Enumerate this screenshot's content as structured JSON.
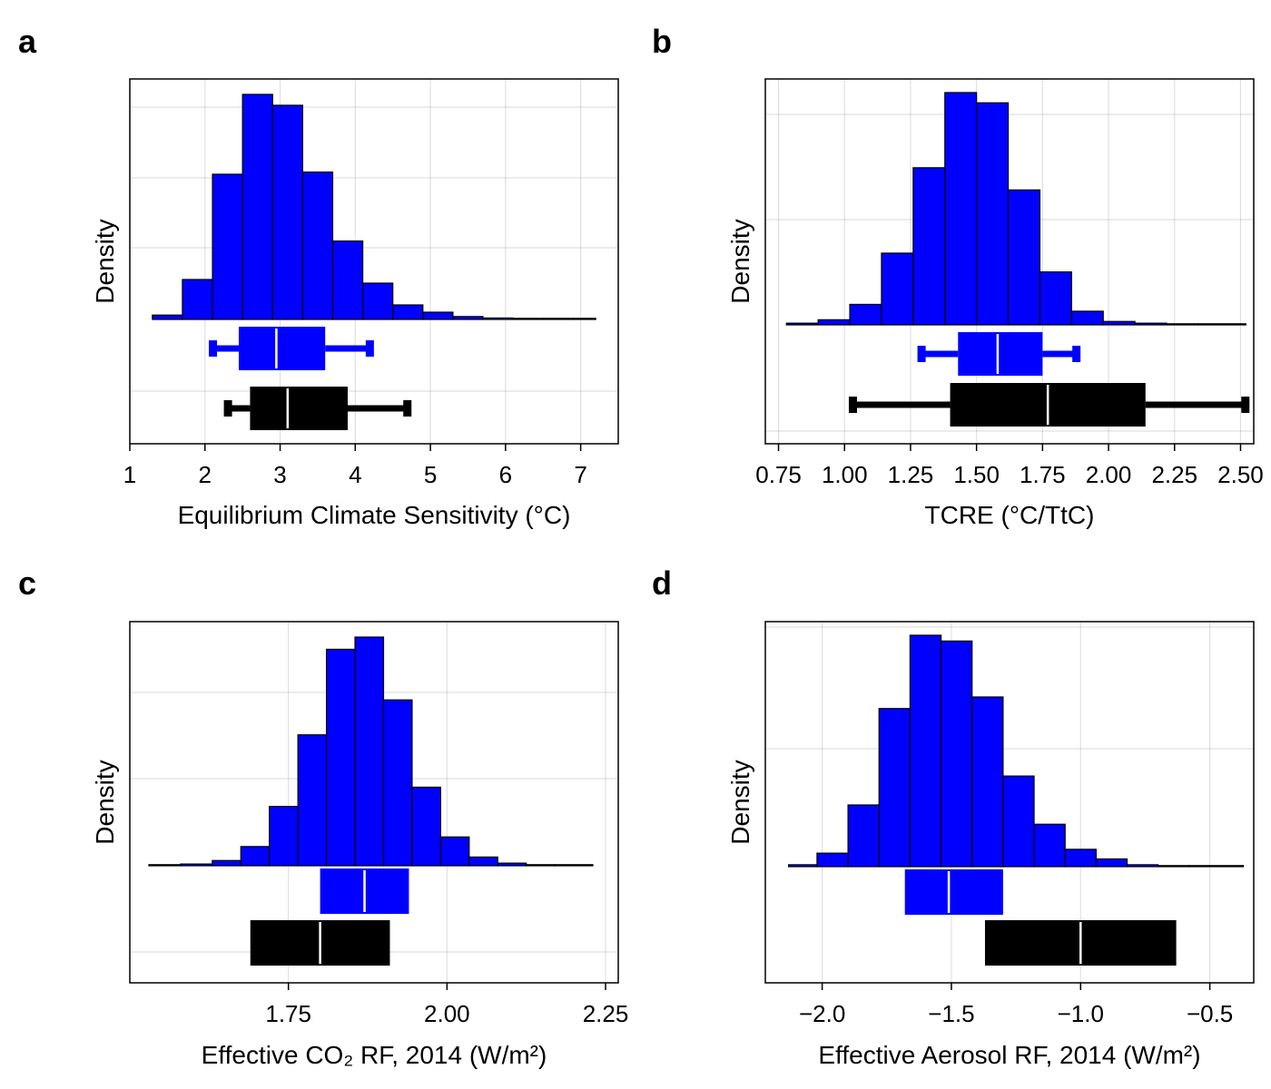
{
  "chart_data": [
    {
      "panel": "a",
      "type": "histogram",
      "xlabel": "Equilibrium Climate Sensitivity (°C)",
      "ylabel": "Density",
      "xlim": [
        1.0,
        7.5
      ],
      "xticks": [
        1,
        2,
        3,
        4,
        5,
        6,
        7
      ],
      "xtick_labels": [
        "1",
        "2",
        "3",
        "4",
        "5",
        "6",
        "7"
      ],
      "grid": true,
      "bin_edges": [
        1.3,
        1.7,
        2.1,
        2.5,
        2.9,
        3.3,
        3.7,
        4.1,
        4.5,
        4.9,
        5.3,
        5.7,
        6.1,
        6.5,
        6.9,
        7.2
      ],
      "bin_heights": [
        0.06,
        0.55,
        2.0,
        3.1,
        2.95,
        2.03,
        1.08,
        0.5,
        0.2,
        0.1,
        0.04,
        0.02,
        0.01,
        0.005,
        0.005
      ],
      "boxes": [
        {
          "color": "#0000ff",
          "whisker_low": 2.1,
          "q1": 2.45,
          "median": 2.95,
          "q3": 3.6,
          "whisker_high": 4.2
        },
        {
          "color": "#000000",
          "whisker_low": 2.3,
          "q1": 2.6,
          "median": 3.1,
          "q3": 3.9,
          "whisker_high": 4.7
        }
      ]
    },
    {
      "panel": "b",
      "type": "histogram",
      "xlabel": "TCRE (°C/TtC)",
      "ylabel": "Density",
      "xlim": [
        0.7,
        2.55
      ],
      "xticks": [
        0.75,
        1.0,
        1.25,
        1.5,
        1.75,
        2.0,
        2.25,
        2.5
      ],
      "xtick_labels": [
        "0.75",
        "1.00",
        "1.25",
        "1.50",
        "1.75",
        "2.00",
        "2.25",
        "2.50"
      ],
      "grid": true,
      "bin_edges": [
        0.78,
        0.9,
        1.02,
        1.14,
        1.26,
        1.38,
        1.5,
        1.62,
        1.74,
        1.86,
        1.98,
        2.1,
        2.22,
        2.34,
        2.52
      ],
      "bin_heights": [
        0.01,
        0.03,
        0.12,
        0.42,
        0.92,
        1.36,
        1.3,
        0.79,
        0.31,
        0.08,
        0.02,
        0.01,
        0.005,
        0.005
      ],
      "boxes": [
        {
          "color": "#0000ff",
          "whisker_low": 1.29,
          "q1": 1.43,
          "median": 1.58,
          "q3": 1.75,
          "whisker_high": 1.88
        },
        {
          "color": "#000000",
          "whisker_low": 1.03,
          "q1": 1.4,
          "median": 1.77,
          "q3": 2.14,
          "whisker_high": 2.52
        }
      ]
    },
    {
      "panel": "c",
      "type": "histogram",
      "xlabel": "Effective CO₂ RF, 2014 (W/m²)",
      "ylabel": "Density",
      "xlim": [
        1.5,
        2.27
      ],
      "xticks": [
        1.75,
        2.0,
        2.25
      ],
      "xtick_labels": [
        "1.75",
        "2.00",
        "2.25"
      ],
      "grid": true,
      "bin_edges": [
        1.53,
        1.58,
        1.63,
        1.675,
        1.72,
        1.765,
        1.81,
        1.855,
        1.9,
        1.945,
        1.99,
        2.035,
        2.08,
        2.125,
        2.17,
        2.23
      ],
      "bin_heights": [
        0.003,
        0.02,
        0.06,
        0.22,
        0.68,
        1.5,
        2.48,
        2.62,
        1.9,
        0.9,
        0.33,
        0.1,
        0.03,
        0.01,
        0.005
      ],
      "boxes": [
        {
          "color": "#0000ff",
          "q1": 1.8,
          "median": 1.87,
          "q3": 1.94
        },
        {
          "color": "#000000",
          "q1": 1.69,
          "median": 1.8,
          "q3": 1.91
        }
      ]
    },
    {
      "panel": "d",
      "type": "histogram",
      "xlabel": "Effective Aerosol RF, 2014 (W/m²)",
      "ylabel": "Density",
      "xlim": [
        -2.22,
        -0.33
      ],
      "xticks": [
        -2.0,
        -1.5,
        -1.0,
        -0.5
      ],
      "xtick_labels": [
        "−2.0",
        "−1.5",
        "−1.0",
        "−0.5"
      ],
      "grid": true,
      "bin_edges": [
        -2.13,
        -2.02,
        -1.9,
        -1.78,
        -1.66,
        -1.54,
        -1.42,
        -1.3,
        -1.18,
        -1.06,
        -0.94,
        -0.82,
        -0.7,
        -0.58,
        -0.37
      ],
      "bin_heights": [
        0.01,
        0.07,
        0.32,
        0.82,
        1.2,
        1.17,
        0.88,
        0.47,
        0.22,
        0.09,
        0.04,
        0.01,
        0.005,
        0.005
      ],
      "boxes": [
        {
          "color": "#0000ff",
          "q1": -1.68,
          "median": -1.51,
          "q3": -1.3
        },
        {
          "color": "#000000",
          "q1": -1.37,
          "median": -1.0,
          "q3": -0.63
        }
      ]
    }
  ]
}
